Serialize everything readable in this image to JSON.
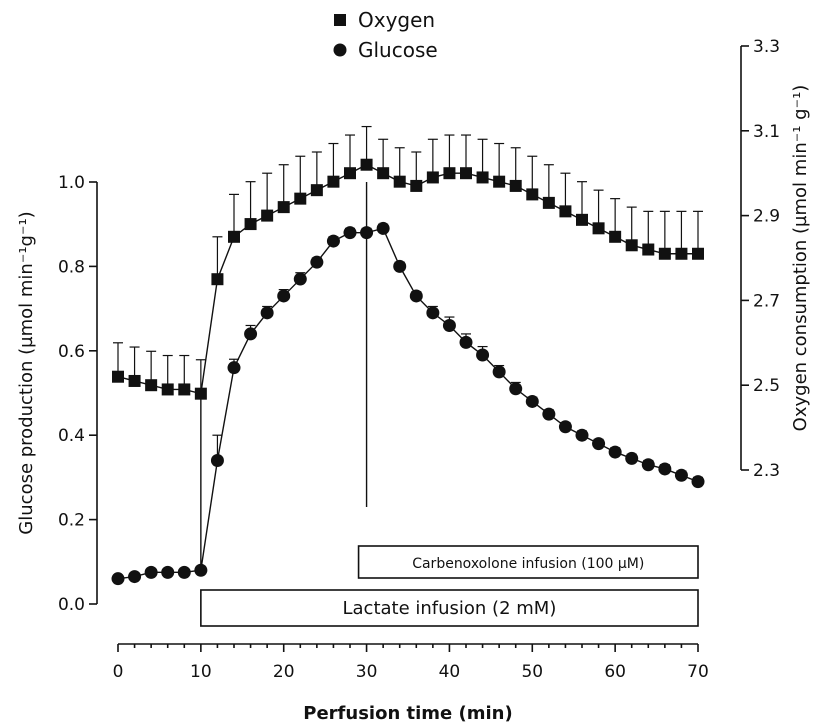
{
  "chart_data": {
    "type": "line",
    "legend": {
      "position": "top-center",
      "entries": [
        {
          "name": "Oxygen",
          "marker": "square"
        },
        {
          "name": "Glucose",
          "marker": "circle"
        }
      ]
    },
    "xlabel": "Perfusion time (min)",
    "ylabel_left": "Glucose production (µmol min⁻¹g⁻¹)",
    "ylabel_right": "Oxygen consumption (µmol min⁻¹ g⁻¹)",
    "xlim": [
      0,
      70
    ],
    "ylim_left": [
      0,
      1.0
    ],
    "ylim_right": [
      2.3,
      3.3
    ],
    "x_ticks": [
      "0",
      "10",
      "20",
      "30",
      "40",
      "50",
      "60",
      "70"
    ],
    "y_left_ticks": [
      "0.0",
      "0.2",
      "0.4",
      "0.6",
      "0.8",
      "1.0"
    ],
    "y_right_ticks": [
      "2.3",
      "2.5",
      "2.7",
      "2.9",
      "3.1",
      "3.3"
    ],
    "grid": false,
    "series": [
      {
        "name": "Glucose",
        "axis": "left",
        "x": [
          0,
          2,
          4,
          6,
          8,
          10,
          12,
          14,
          16,
          18,
          20,
          22,
          24,
          26,
          28,
          30,
          32,
          34,
          36,
          38,
          40,
          42,
          44,
          46,
          48,
          50,
          52,
          54,
          56,
          58,
          60,
          62,
          64,
          66,
          68,
          70
        ],
        "y": [
          0.06,
          0.065,
          0.075,
          0.075,
          0.075,
          0.08,
          0.34,
          0.56,
          0.64,
          0.69,
          0.73,
          0.77,
          0.81,
          0.86,
          0.88,
          0.88,
          0.89,
          0.8,
          0.73,
          0.69,
          0.66,
          0.62,
          0.59,
          0.55,
          0.51,
          0.48,
          0.45,
          0.42,
          0.4,
          0.38,
          0.36,
          0.345,
          0.33,
          0.32,
          0.305,
          0.29
        ],
        "error": [
          0.005,
          0.005,
          0.005,
          0.005,
          0.005,
          0.005,
          0.06,
          0.02,
          0.02,
          0.015,
          0.015,
          0.015,
          0.01,
          0.01,
          0.01,
          0.01,
          0.01,
          0.01,
          0.01,
          0.015,
          0.02,
          0.02,
          0.02,
          0.015,
          0.015,
          0.01,
          0.01,
          0.01,
          0.01,
          0.01,
          0.01,
          0.01,
          0.01,
          0.01,
          0.01,
          0.01
        ]
      },
      {
        "name": "Oxygen",
        "axis": "right",
        "x": [
          0,
          2,
          4,
          6,
          8,
          10,
          12,
          14,
          16,
          18,
          20,
          22,
          24,
          26,
          28,
          30,
          32,
          34,
          36,
          38,
          40,
          42,
          44,
          46,
          48,
          50,
          52,
          54,
          56,
          58,
          60,
          62,
          64,
          66,
          68,
          70
        ],
        "y": [
          2.52,
          2.51,
          2.5,
          2.49,
          2.49,
          2.48,
          2.75,
          2.85,
          2.88,
          2.9,
          2.92,
          2.94,
          2.96,
          2.98,
          3.0,
          3.02,
          3.0,
          2.98,
          2.97,
          2.99,
          3.0,
          3.0,
          2.99,
          2.98,
          2.97,
          2.95,
          2.93,
          2.91,
          2.89,
          2.87,
          2.85,
          2.83,
          2.82,
          2.81,
          2.81,
          2.81
        ],
        "error": [
          0.08,
          0.08,
          0.08,
          0.08,
          0.08,
          0.08,
          0.1,
          0.1,
          0.1,
          0.1,
          0.1,
          0.1,
          0.09,
          0.09,
          0.09,
          0.09,
          0.08,
          0.08,
          0.08,
          0.09,
          0.09,
          0.09,
          0.09,
          0.09,
          0.09,
          0.09,
          0.09,
          0.09,
          0.09,
          0.09,
          0.09,
          0.09,
          0.09,
          0.1,
          0.1,
          0.1
        ]
      }
    ],
    "annotations": [
      {
        "label": "Lactate infusion (2 mM)",
        "x_start": 10,
        "x_end": 70
      },
      {
        "label": "Carbenoxolone infusion (100 µM)",
        "x_start": 30,
        "x_end": 70
      }
    ],
    "vertical_lines": [
      {
        "x": 10,
        "y_from": 0.08,
        "y_to": 0.5
      },
      {
        "x": 30,
        "y_from": 0.23,
        "y_to": 1.0
      }
    ]
  }
}
